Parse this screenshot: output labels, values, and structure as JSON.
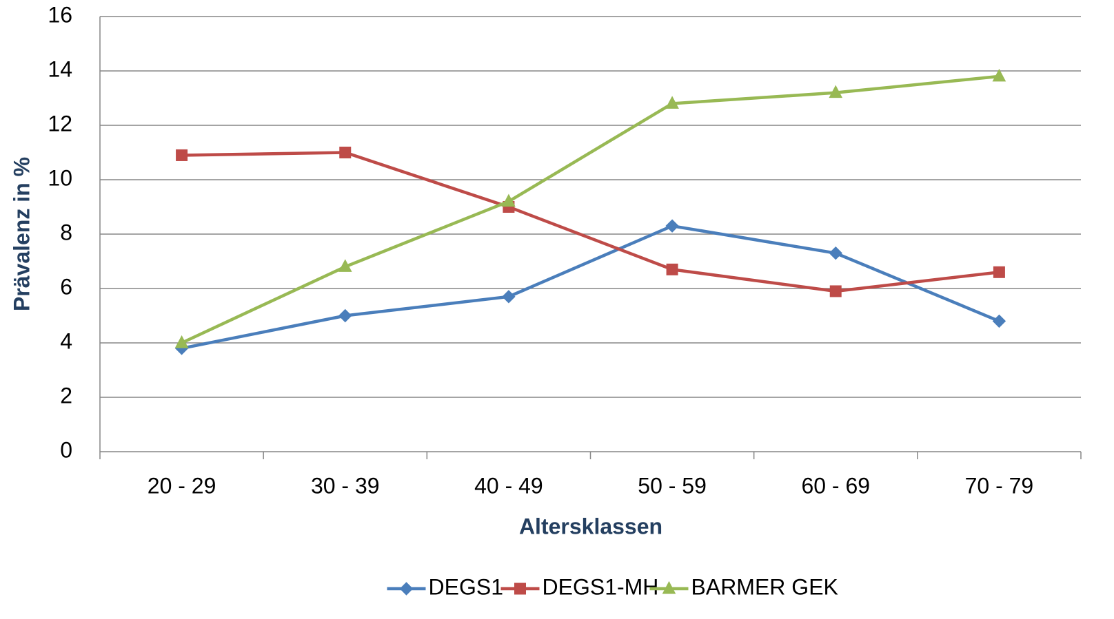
{
  "chart_data": {
    "type": "line",
    "x_label": "Altersklassen",
    "y_label": "Prävalenz in %",
    "categories": [
      "20 - 29",
      "30 - 39",
      "40 - 49",
      "50 - 59",
      "60 - 69",
      "70 - 79"
    ],
    "series": [
      {
        "name": "DEGS1",
        "color": "#4a7ebb",
        "marker": "diamond",
        "values": [
          3.8,
          5.0,
          5.7,
          8.3,
          7.3,
          4.8
        ]
      },
      {
        "name": "DEGS1-MH",
        "color": "#be4b48",
        "marker": "square",
        "values": [
          10.9,
          11.0,
          9.0,
          6.7,
          5.9,
          6.6
        ]
      },
      {
        "name": "BARMER GEK",
        "color": "#98b954",
        "marker": "triangle",
        "values": [
          4.0,
          6.8,
          9.2,
          12.8,
          13.2,
          13.8
        ]
      }
    ],
    "ylim": [
      0,
      16
    ],
    "yticks": [
      0,
      2,
      4,
      6,
      8,
      10,
      12,
      14,
      16
    ],
    "grid": true,
    "legend": "bottom"
  }
}
